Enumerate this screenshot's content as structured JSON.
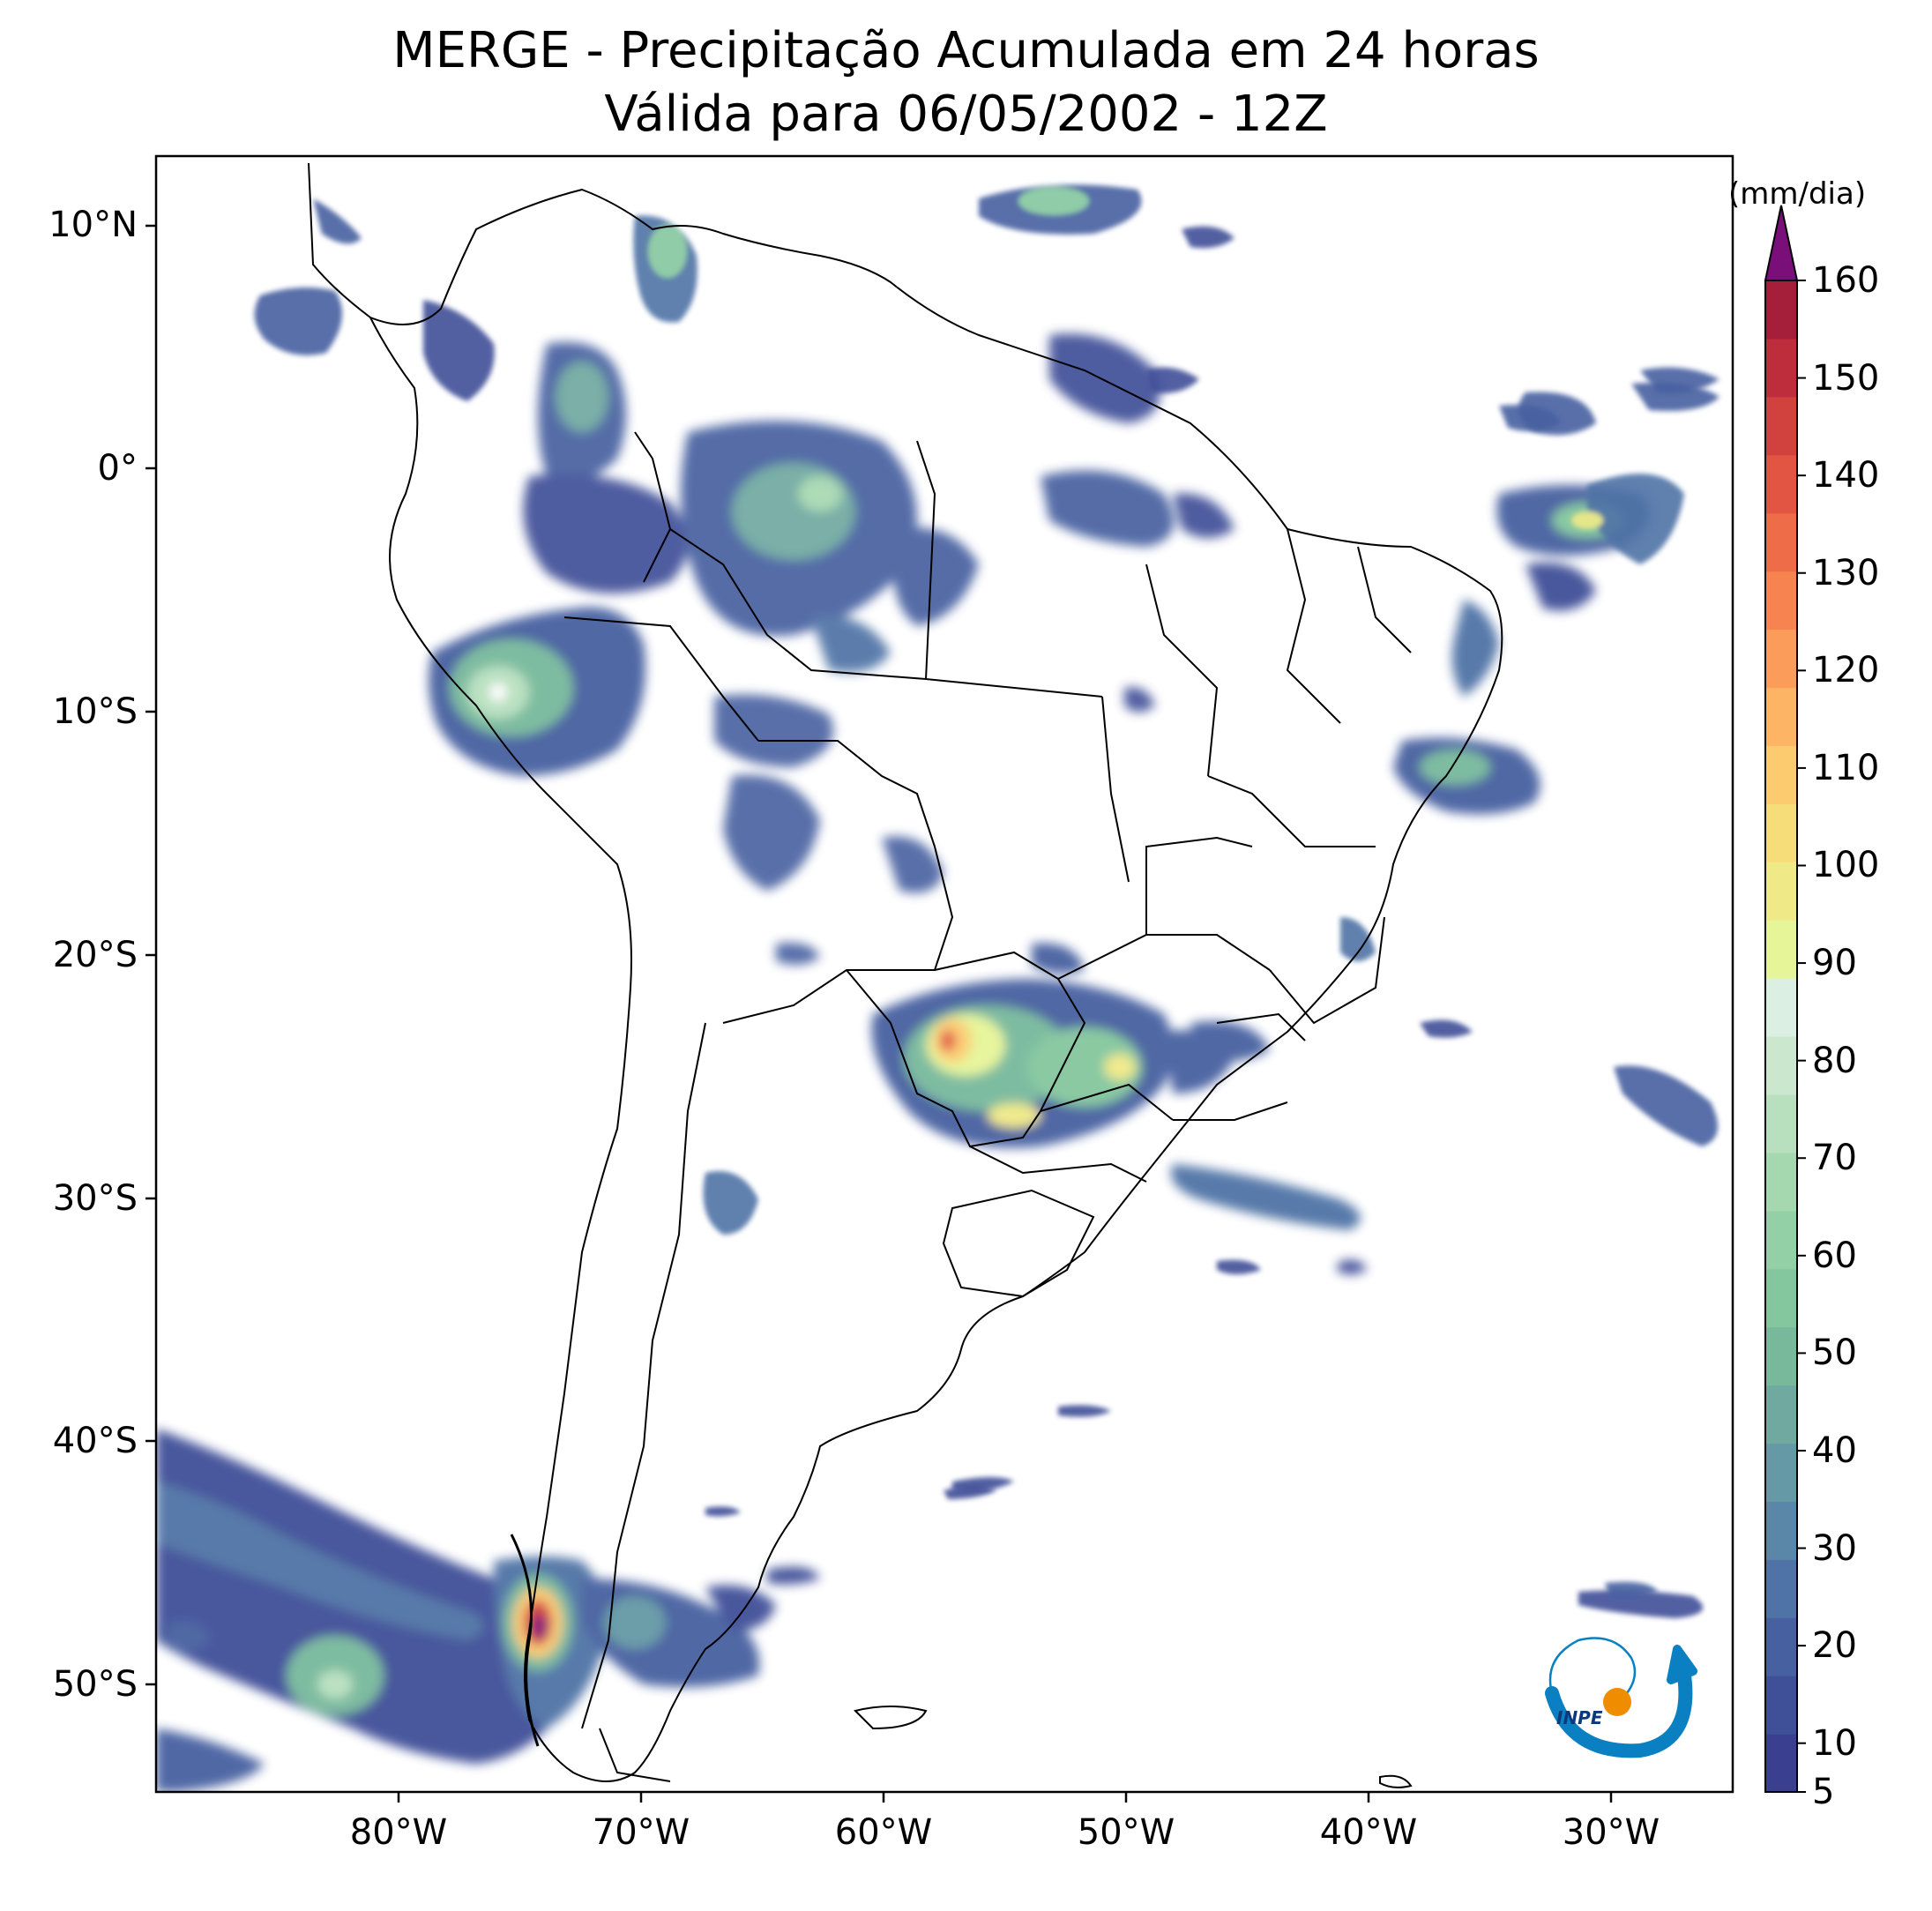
{
  "map": {
    "title_line1": "MERGE - Precipitação Acumulada em 24 horas",
    "title_line2": "Válida para 06/05/2002 - 12Z",
    "lat_labels": [
      "10°N",
      "0°",
      "10°S",
      "20°S",
      "30°S",
      "40°S",
      "50°S"
    ],
    "lon_labels": [
      "80°W",
      "70°W",
      "60°W",
      "50°W",
      "40°W",
      "30°W"
    ],
    "extent": {
      "lon_min": -90,
      "lon_max": -25,
      "lat_min": -56,
      "lat_max": 13
    }
  },
  "colorbar": {
    "unit": "(mm/dia)",
    "ticks": [
      5,
      10,
      20,
      30,
      40,
      50,
      60,
      70,
      80,
      90,
      100,
      110,
      120,
      130,
      140,
      150,
      160
    ],
    "range": [
      5,
      160
    ],
    "extend": "max",
    "colors": [
      "#3a3f8f",
      "#3f4f98",
      "#4761a0",
      "#4f73a6",
      "#5a86a8",
      "#6599a6",
      "#6fa9a0",
      "#78b99c",
      "#84c79e",
      "#94d0a6",
      "#a6d8b0",
      "#b8e0bf",
      "#cbe8cf",
      "#dcefe3",
      "#e6f598",
      "#f0e987",
      "#f7dd7a",
      "#fccb6f",
      "#fdb464",
      "#fc9c5a",
      "#f78450",
      "#ee6c48",
      "#e15542",
      "#d1413e",
      "#bd2d3c",
      "#a51f3b"
    ],
    "over_color": "#7a0f7a"
  },
  "logo": {
    "text": "INPE"
  }
}
